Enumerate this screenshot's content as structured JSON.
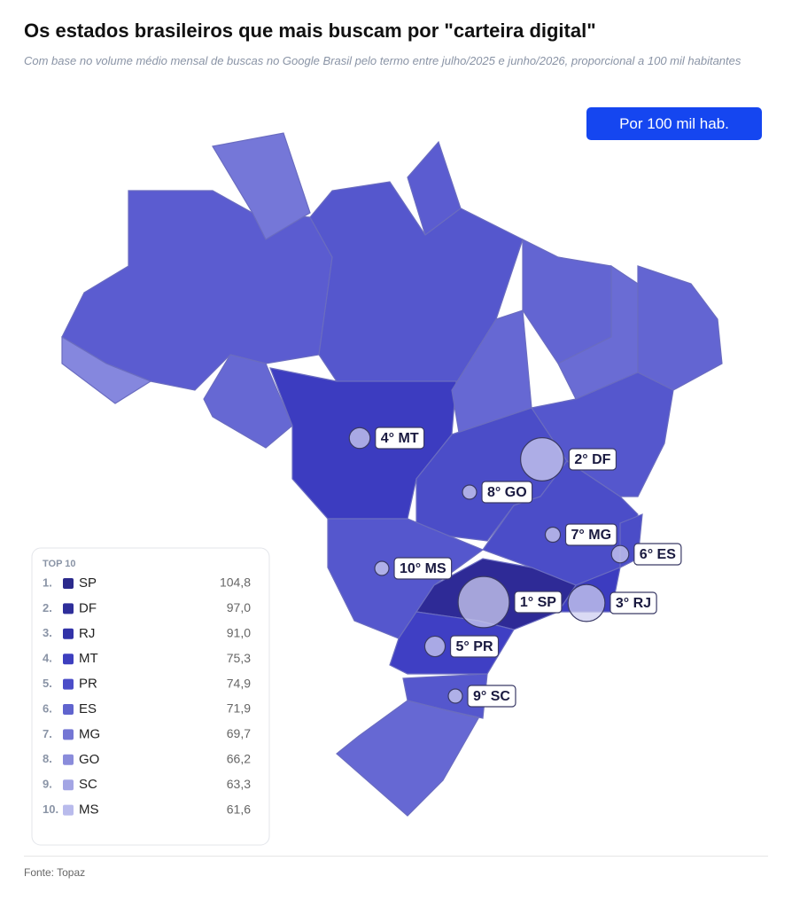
{
  "header": {
    "title": "Os estados brasileiros que mais buscam por \"carteira digital\"",
    "subtitle": "Com base no volume médio mensal de buscas no Google Brasil pelo termo entre julho/2025 e junho/2026, proporcional a 100 mil habitantes"
  },
  "button": "Por 100 mil hab.",
  "ranking": {
    "title": "TOP 10",
    "items": [
      {
        "rank": "1.",
        "state": "SP",
        "value": {
          "value": 104.8,
          "label": "104,8"
        },
        "badge": "1° SP",
        "color": "#2b2a8c"
      },
      {
        "rank": "2.",
        "state": "DF",
        "value": {
          "value": 97.0,
          "label": "97,0"
        },
        "badge": "2° DF",
        "color": "#2e2e9a"
      },
      {
        "rank": "3.",
        "state": "RJ",
        "value": {
          "value": 91.0,
          "label": "91,0"
        },
        "badge": "3° RJ",
        "color": "#3233a8"
      },
      {
        "rank": "4.",
        "state": "MT",
        "value": {
          "value": 75.3,
          "label": "75,3"
        },
        "badge": "4° MT",
        "color": "#3d3fbf"
      },
      {
        "rank": "5.",
        "state": "PR",
        "value": {
          "value": 74.9,
          "label": "74,9"
        },
        "badge": "5° PR",
        "color": "#4b4dc8"
      },
      {
        "rank": "6.",
        "state": "ES",
        "value": {
          "value": 71.9,
          "label": "71,9"
        },
        "badge": "6° ES",
        "color": "#6064ce"
      },
      {
        "rank": "7.",
        "state": "MG",
        "value": {
          "value": 69.7,
          "label": "69,7"
        },
        "badge": "7° MG",
        "color": "#7476d4"
      },
      {
        "rank": "8.",
        "state": "GO",
        "value": {
          "value": 66.2,
          "label": "66,2"
        },
        "badge": "8° GO",
        "color": "#8a8cdb"
      },
      {
        "rank": "9.",
        "state": "SC",
        "value": {
          "value": 63.3,
          "label": "63,3"
        },
        "badge": "9° SC",
        "color": "#a3a5e4"
      },
      {
        "rank": "10.",
        "state": "MS",
        "value": {
          "value": 61.6,
          "label": "61,6"
        },
        "badge": "10° MS",
        "color": "#b9bbec"
      }
    ]
  },
  "source": "Fonte: Topaz"
}
